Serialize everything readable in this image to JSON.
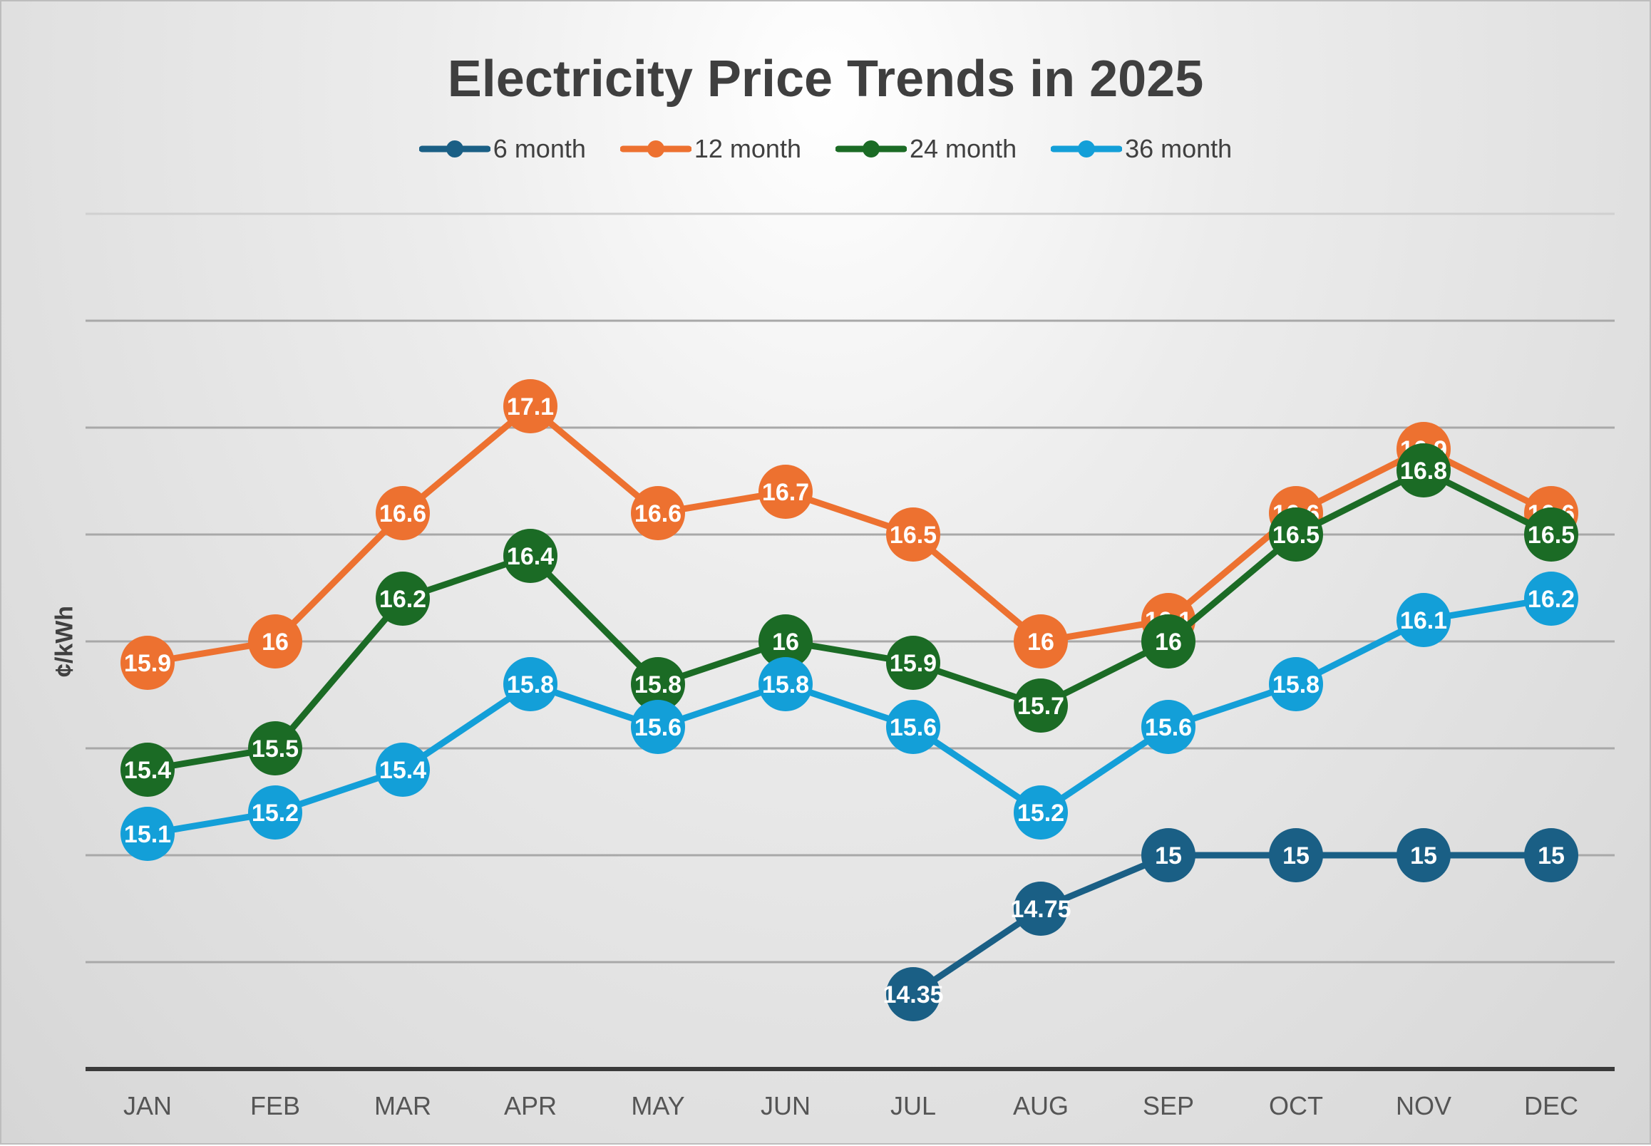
{
  "chart_data": {
    "type": "line",
    "title": "Electricity Price Trends in 2025",
    "xlabel": "",
    "ylabel": "¢/kWh",
    "ylim": [
      14,
      18
    ],
    "grid_step": 0.5,
    "grid": true,
    "legend_position": "top",
    "categories": [
      "JAN",
      "FEB",
      "MAR",
      "APR",
      "MAY",
      "JUN",
      "JUL",
      "AUG",
      "SEP",
      "OCT",
      "NOV",
      "DEC"
    ],
    "series": [
      {
        "name": "6 month",
        "color": "#1a5f85",
        "values": [
          null,
          null,
          null,
          null,
          null,
          null,
          14.35,
          14.75,
          15,
          15,
          15,
          15
        ]
      },
      {
        "name": "12 month",
        "color": "#ed7130",
        "values": [
          15.9,
          16,
          16.6,
          17.1,
          16.6,
          16.7,
          16.5,
          16,
          16.1,
          16.6,
          16.9,
          16.6
        ]
      },
      {
        "name": "24 month",
        "color": "#1b6b25",
        "values": [
          15.4,
          15.5,
          16.2,
          16.4,
          15.8,
          16,
          15.9,
          15.7,
          16,
          16.5,
          16.8,
          16.5
        ]
      },
      {
        "name": "36 month",
        "color": "#139fd8",
        "values": [
          15.1,
          15.2,
          15.4,
          15.8,
          15.6,
          15.8,
          15.6,
          15.2,
          15.6,
          15.8,
          16.1,
          16.2
        ]
      }
    ]
  }
}
